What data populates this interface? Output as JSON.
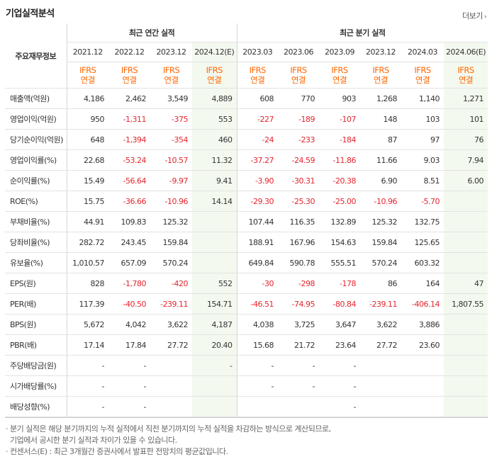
{
  "title": "기업실적분석",
  "more_label": "더보기",
  "head_label": "주요재무정보",
  "groups": {
    "annual": "최근 연간 실적",
    "quarter": "최근 분기 실적"
  },
  "periods": [
    "2021.12",
    "2022.12",
    "2023.12",
    "2024.12(E)",
    "2023.03",
    "2023.06",
    "2023.09",
    "2023.12",
    "2024.03",
    "2024.06(E)"
  ],
  "ifrs": {
    "line1": "IFRS",
    "line2": "연결"
  },
  "rows": [
    {
      "label": "매출액(억원)",
      "values": [
        "4,186",
        "2,462",
        "3,549",
        "4,889",
        "608",
        "770",
        "903",
        "1,268",
        "1,140",
        "1,271"
      ]
    },
    {
      "label": "영업이익(억원)",
      "values": [
        "950",
        "-1,311",
        "-375",
        "553",
        "-227",
        "-189",
        "-107",
        "148",
        "103",
        "101"
      ]
    },
    {
      "label": "당기순이익(억원)",
      "values": [
        "648",
        "-1,394",
        "-354",
        "460",
        "-24",
        "-233",
        "-184",
        "87",
        "97",
        "76"
      ]
    },
    {
      "label": "영업이익률(%)",
      "values": [
        "22.68",
        "-53.24",
        "-10.57",
        "11.32",
        "-37.27",
        "-24.59",
        "-11.86",
        "11.66",
        "9.03",
        "7.94"
      ]
    },
    {
      "label": "순이익률(%)",
      "values": [
        "15.49",
        "-56.64",
        "-9.97",
        "9.41",
        "-3.90",
        "-30.31",
        "-20.38",
        "6.90",
        "8.51",
        "6.00"
      ]
    },
    {
      "label": "ROE(%)",
      "values": [
        "15.75",
        "-36.66",
        "-10.96",
        "14.14",
        "-29.30",
        "-25.30",
        "-25.00",
        "-10.96",
        "-5.70",
        ""
      ]
    },
    {
      "label": "부채비율(%)",
      "values": [
        "44.91",
        "109.83",
        "125.32",
        "",
        "107.44",
        "116.35",
        "132.89",
        "125.32",
        "132.75",
        ""
      ]
    },
    {
      "label": "당좌비율(%)",
      "values": [
        "282.72",
        "243.45",
        "159.84",
        "",
        "188.91",
        "167.96",
        "154.63",
        "159.84",
        "125.65",
        ""
      ]
    },
    {
      "label": "유보율(%)",
      "values": [
        "1,010.57",
        "657.09",
        "570.24",
        "",
        "649.84",
        "590.78",
        "555.51",
        "570.24",
        "603.32",
        ""
      ]
    },
    {
      "label": "EPS(원)",
      "values": [
        "828",
        "-1,780",
        "-420",
        "552",
        "-30",
        "-298",
        "-178",
        "86",
        "164",
        "47"
      ]
    },
    {
      "label": "PER(배)",
      "values": [
        "117.39",
        "-40.50",
        "-239.11",
        "154.71",
        "-46.51",
        "-74.95",
        "-80.84",
        "-239.11",
        "-406.14",
        "1,807.55"
      ]
    },
    {
      "label": "BPS(원)",
      "values": [
        "5,672",
        "4,042",
        "3,622",
        "4,187",
        "4,038",
        "3,725",
        "3,647",
        "3,622",
        "3,886",
        ""
      ]
    },
    {
      "label": "PBR(배)",
      "values": [
        "17.14",
        "17.84",
        "27.72",
        "20.40",
        "15.68",
        "21.72",
        "23.64",
        "27.72",
        "23.60",
        ""
      ]
    },
    {
      "label": "주당배당금(원)",
      "values": [
        "-",
        "-",
        "",
        "-",
        "-",
        "-",
        "-",
        "",
        "",
        ""
      ]
    },
    {
      "label": "시가배당률(%)",
      "values": [
        "-",
        "-",
        "",
        "",
        "-",
        "-",
        "-",
        "",
        "",
        ""
      ]
    },
    {
      "label": "배당성향(%)",
      "values": [
        "-",
        "-",
        "",
        "",
        "",
        "",
        "-",
        "",
        "",
        ""
      ]
    }
  ],
  "notes": [
    "· 분기 실적은 해당 분기까지의 누적 실적에서 직전 분기까지의 누적 실적을 차감하는 방식으로 계산되므로,",
    "  기업에서 공시한 분기 실적과 차이가 있을 수 있습니다.",
    "· 컨센서스(E) : 최근 3개월간 증권사에서 발표한 전망치의 평균값입니다."
  ]
}
